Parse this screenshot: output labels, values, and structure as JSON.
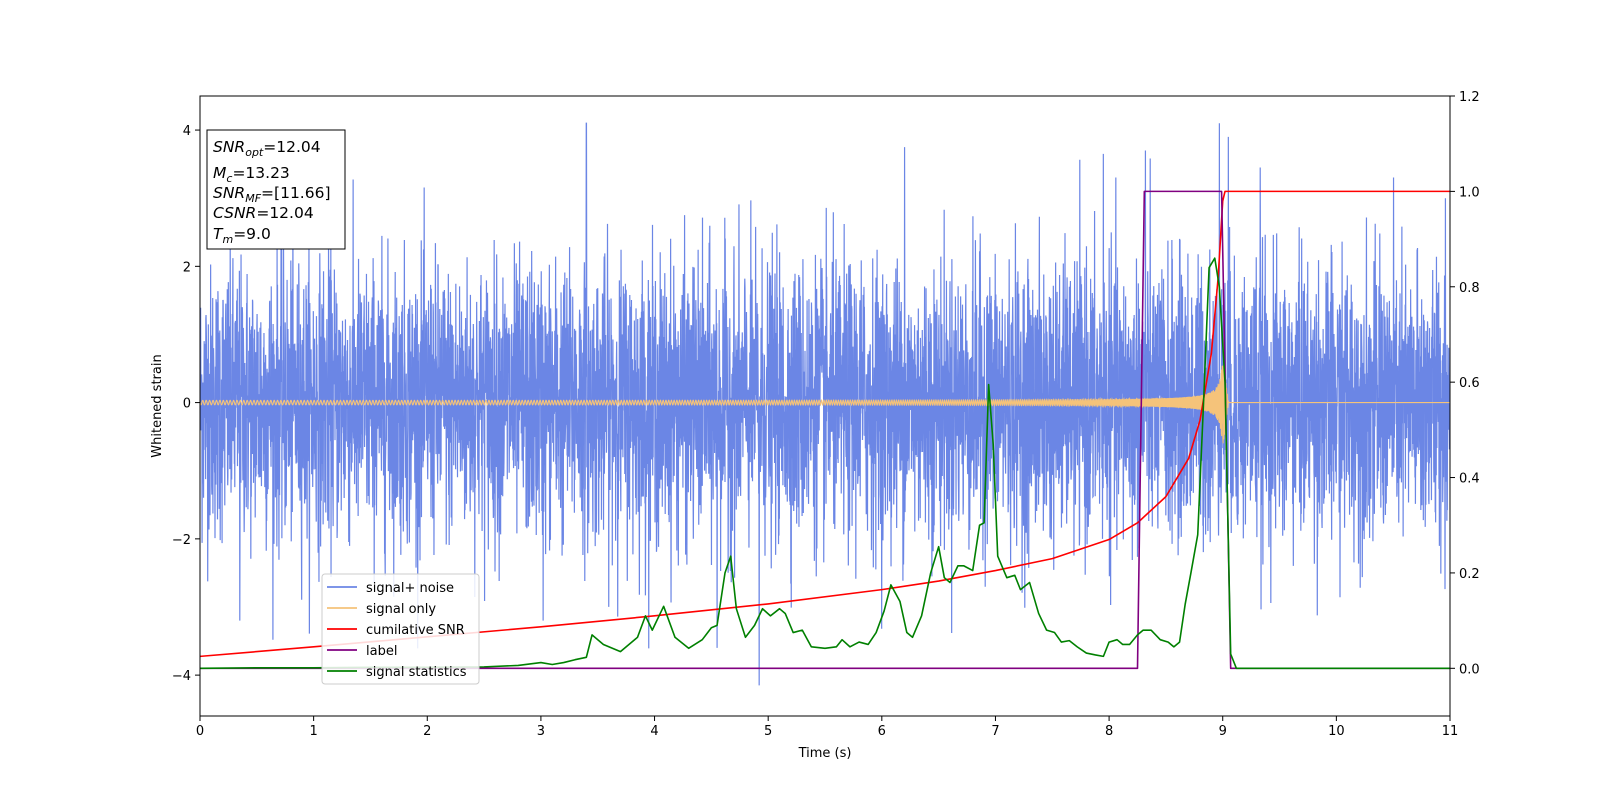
{
  "chart_data": {
    "type": "line",
    "xlabel": "Time (s)",
    "ylabel": "Whitened strain",
    "xlim": [
      0,
      11
    ],
    "ylim": [
      -4.6,
      4.5
    ],
    "y2lim": [
      -0.1,
      1.2
    ],
    "x_ticks": [
      0,
      1,
      2,
      3,
      4,
      5,
      6,
      7,
      8,
      9,
      10,
      11
    ],
    "y_ticks": [
      -4,
      -2,
      0,
      2,
      4
    ],
    "y2_ticks": [
      "0.0",
      "0.2",
      "0.4",
      "0.6",
      "0.8",
      "1.0",
      "1.2"
    ],
    "legend_position": "lower-left",
    "annotation": {
      "lines": [
        {
          "sym": "SNR",
          "sub": "opt",
          "val": "=12.04"
        },
        {
          "sym": "M",
          "sub": "c",
          "val": "=13.23"
        },
        {
          "sym": "SNR",
          "sub": "MF",
          "val": "=[11.66]"
        },
        {
          "sym": "CSNR",
          "sub": "",
          "val": "=12.04"
        },
        {
          "sym": "T",
          "sub": "m",
          "val": "=9.0"
        }
      ]
    },
    "series": [
      {
        "name": "signal+ noise",
        "color": "#6b86e5",
        "axis": "left",
        "style": "noise",
        "x_range": [
          0,
          11
        ],
        "envelope": 4.1,
        "notable_peaks": [
          [
            3.4,
            4.1
          ],
          [
            8.32,
            3.7
          ],
          [
            8.97,
            4.1
          ],
          [
            9.05,
            3.9
          ],
          [
            4.92,
            -4.15
          ],
          [
            4.55,
            -3.6
          ],
          [
            3.02,
            -3.2
          ],
          [
            0.35,
            -3.2
          ],
          [
            7.95,
            3.65
          ],
          [
            6.2,
            3.75
          ],
          [
            9.33,
            3.45
          ],
          [
            10.96,
            3.0
          ]
        ]
      },
      {
        "name": "signal only",
        "color": "#f5c37a",
        "axis": "left",
        "style": "chirp",
        "start_amplitude": 0.03,
        "merger_time": 9.0,
        "peak_amplitude": 0.7,
        "ringdown_end": 9.05
      },
      {
        "name": "cumilative SNR",
        "color": "#ff0000",
        "axis": "right",
        "points": [
          [
            0,
            0.025
          ],
          [
            1,
            0.045
          ],
          [
            2,
            0.066
          ],
          [
            3,
            0.087
          ],
          [
            4,
            0.11
          ],
          [
            5,
            0.135
          ],
          [
            6,
            0.165
          ],
          [
            6.5,
            0.183
          ],
          [
            7,
            0.205
          ],
          [
            7.5,
            0.23
          ],
          [
            8,
            0.27
          ],
          [
            8.25,
            0.305
          ],
          [
            8.5,
            0.36
          ],
          [
            8.7,
            0.44
          ],
          [
            8.8,
            0.52
          ],
          [
            8.9,
            0.66
          ],
          [
            8.96,
            0.82
          ],
          [
            9.0,
            0.98
          ],
          [
            9.02,
            1.0
          ],
          [
            11,
            1.0
          ]
        ]
      },
      {
        "name": "label",
        "color": "#800080",
        "axis": "right",
        "points": [
          [
            0,
            0.0
          ],
          [
            8.25,
            0.0
          ],
          [
            8.31,
            1.0
          ],
          [
            8.99,
            1.0
          ],
          [
            9.07,
            0.0
          ],
          [
            11,
            0.0
          ]
        ]
      },
      {
        "name": "signal statistics",
        "color": "#008000",
        "axis": "right",
        "points": [
          [
            0,
            0.0
          ],
          [
            0.5,
            0.001
          ],
          [
            1,
            0.001
          ],
          [
            1.5,
            0.002
          ],
          [
            2,
            0.002
          ],
          [
            2.5,
            0.003
          ],
          [
            2.8,
            0.006
          ],
          [
            3.0,
            0.012
          ],
          [
            3.1,
            0.008
          ],
          [
            3.2,
            0.012
          ],
          [
            3.3,
            0.018
          ],
          [
            3.4,
            0.023
          ],
          [
            3.45,
            0.07
          ],
          [
            3.55,
            0.05
          ],
          [
            3.7,
            0.035
          ],
          [
            3.85,
            0.065
          ],
          [
            3.92,
            0.11
          ],
          [
            3.98,
            0.08
          ],
          [
            4.08,
            0.13
          ],
          [
            4.18,
            0.065
          ],
          [
            4.3,
            0.042
          ],
          [
            4.42,
            0.06
          ],
          [
            4.5,
            0.085
          ],
          [
            4.55,
            0.09
          ],
          [
            4.62,
            0.2
          ],
          [
            4.67,
            0.235
          ],
          [
            4.72,
            0.125
          ],
          [
            4.8,
            0.065
          ],
          [
            4.88,
            0.09
          ],
          [
            4.95,
            0.125
          ],
          [
            5.02,
            0.11
          ],
          [
            5.1,
            0.125
          ],
          [
            5.15,
            0.115
          ],
          [
            5.22,
            0.075
          ],
          [
            5.3,
            0.08
          ],
          [
            5.38,
            0.045
          ],
          [
            5.5,
            0.042
          ],
          [
            5.6,
            0.045
          ],
          [
            5.65,
            0.06
          ],
          [
            5.72,
            0.045
          ],
          [
            5.8,
            0.055
          ],
          [
            5.88,
            0.05
          ],
          [
            5.95,
            0.075
          ],
          [
            6.02,
            0.12
          ],
          [
            6.08,
            0.175
          ],
          [
            6.16,
            0.14
          ],
          [
            6.22,
            0.075
          ],
          [
            6.27,
            0.065
          ],
          [
            6.35,
            0.11
          ],
          [
            6.43,
            0.2
          ],
          [
            6.5,
            0.255
          ],
          [
            6.55,
            0.19
          ],
          [
            6.6,
            0.18
          ],
          [
            6.67,
            0.215
          ],
          [
            6.72,
            0.215
          ],
          [
            6.8,
            0.205
          ],
          [
            6.86,
            0.3
          ],
          [
            6.9,
            0.305
          ],
          [
            6.94,
            0.595
          ],
          [
            6.98,
            0.47
          ],
          [
            7.02,
            0.235
          ],
          [
            7.1,
            0.19
          ],
          [
            7.17,
            0.195
          ],
          [
            7.22,
            0.165
          ],
          [
            7.3,
            0.18
          ],
          [
            7.38,
            0.115
          ],
          [
            7.45,
            0.08
          ],
          [
            7.52,
            0.075
          ],
          [
            7.58,
            0.055
          ],
          [
            7.65,
            0.058
          ],
          [
            7.72,
            0.045
          ],
          [
            7.8,
            0.032
          ],
          [
            7.88,
            0.028
          ],
          [
            7.95,
            0.025
          ],
          [
            8.0,
            0.055
          ],
          [
            8.07,
            0.06
          ],
          [
            8.12,
            0.05
          ],
          [
            8.18,
            0.05
          ],
          [
            8.25,
            0.07
          ],
          [
            8.3,
            0.08
          ],
          [
            8.37,
            0.08
          ],
          [
            8.45,
            0.06
          ],
          [
            8.52,
            0.055
          ],
          [
            8.57,
            0.045
          ],
          [
            8.62,
            0.055
          ],
          [
            8.67,
            0.135
          ],
          [
            8.72,
            0.2
          ],
          [
            8.78,
            0.28
          ],
          [
            8.83,
            0.55
          ],
          [
            8.88,
            0.84
          ],
          [
            8.93,
            0.86
          ],
          [
            8.97,
            0.8
          ],
          [
            9.02,
            0.6
          ],
          [
            9.07,
            0.03
          ],
          [
            9.12,
            0.0
          ],
          [
            11,
            0.0
          ]
        ]
      }
    ]
  }
}
